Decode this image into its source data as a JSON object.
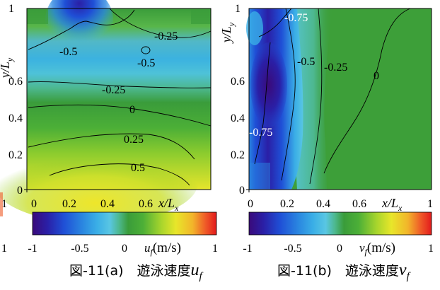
{
  "colors": {
    "scale": [
      "#3a0a7a",
      "#2a1fa6",
      "#1f4fd6",
      "#2a86e0",
      "#3aaee6",
      "#59c6e3",
      "#4db88f",
      "#3a9c3a",
      "#4caf37",
      "#a8d52c",
      "#e8e62a",
      "#f2b52a",
      "#ef5b28",
      "#e31a1c"
    ]
  },
  "charts": [
    {
      "id": "a",
      "caption_prefix": "図-11(a)　遊泳速度",
      "symbol": "u",
      "subscript": "f",
      "colorbar_label_sym": "u",
      "colorbar_label_sub": "f",
      "colorbar_label_unit": "(m/s)",
      "colorbar_ticks": [
        "-1",
        "-0.5",
        "0",
        "1"
      ],
      "y_ticks": [
        "0",
        "0.2",
        "0.4",
        "0.6",
        "0.8",
        "1"
      ],
      "x_ticks": [
        "0",
        "0.2",
        "0.4",
        "0.6"
      ],
      "x_end_tick": "1",
      "x_axis_label": "x/L",
      "x_axis_sub": "x",
      "y_axis_label": "y/L",
      "y_axis_sub": "y",
      "contour_labels": [
        "-0.25",
        "-0.5",
        "-0.5",
        "-0.25",
        "0",
        "0.25",
        "0.5"
      ]
    },
    {
      "id": "b",
      "caption_prefix": "図-11(b)　遊泳速度",
      "symbol": "v",
      "subscript": "f",
      "colorbar_label_sym": "v",
      "colorbar_label_sub": "f",
      "colorbar_label_unit": "(m/s)",
      "colorbar_ticks": [
        "-1",
        "-0.5",
        "0",
        "1"
      ],
      "y_ticks": [
        "0",
        "0.2",
        "0.4",
        "0.6",
        "0.8",
        "1"
      ],
      "x_ticks": [
        "0",
        "0.2",
        "0.4",
        "0.6"
      ],
      "x_end_tick": "1",
      "x_axis_label": "x/L",
      "x_axis_sub": "x",
      "y_axis_label": "y/L",
      "y_axis_sub": "y",
      "contour_labels": [
        "-0.75",
        "-0.5",
        "-0.25",
        "0",
        "-0.75"
      ]
    }
  ],
  "chart_data": [
    {
      "type": "heatmap",
      "title": "",
      "variable": "u_f",
      "xlabel": "x/Lx",
      "ylabel": "y/Ly",
      "xlim": [
        0,
        1
      ],
      "ylim": [
        0,
        1
      ],
      "colorbar": {
        "label": "u_f (m/s)",
        "range": [
          -1,
          1
        ]
      },
      "contour_levels": [
        {
          "value": 0.5,
          "label_at": [
            0.35,
            0.09
          ]
        },
        {
          "value": 0.25,
          "label_at": [
            0.4,
            0.25
          ]
        },
        {
          "value": 0,
          "label_at": [
            0.45,
            0.42
          ]
        },
        {
          "value": -0.25,
          "label_at": [
            0.33,
            0.64
          ]
        },
        {
          "value": -0.25,
          "label_at": [
            0.7,
            0.9
          ]
        },
        {
          "value": -0.5,
          "label_at": [
            0.2,
            0.8
          ]
        },
        {
          "value": -0.5,
          "label_at": [
            0.53,
            0.75
          ]
        }
      ]
    },
    {
      "type": "heatmap",
      "title": "",
      "variable": "v_f",
      "xlabel": "x/Lx",
      "ylabel": "y/Ly",
      "xlim": [
        0,
        1
      ],
      "ylim": [
        0,
        1
      ],
      "colorbar": {
        "label": "v_f (m/s)",
        "range": [
          -1,
          1
        ]
      },
      "contour_levels": [
        {
          "value": -0.75,
          "label_at": [
            0.2,
            0.96
          ]
        },
        {
          "value": -0.75,
          "label_at": [
            0.05,
            0.35
          ]
        },
        {
          "value": -0.5,
          "label_at": [
            0.35,
            0.77
          ]
        },
        {
          "value": -0.25,
          "label_at": [
            0.5,
            0.75
          ]
        },
        {
          "value": 0,
          "label_at": [
            0.68,
            0.68
          ]
        }
      ]
    }
  ]
}
